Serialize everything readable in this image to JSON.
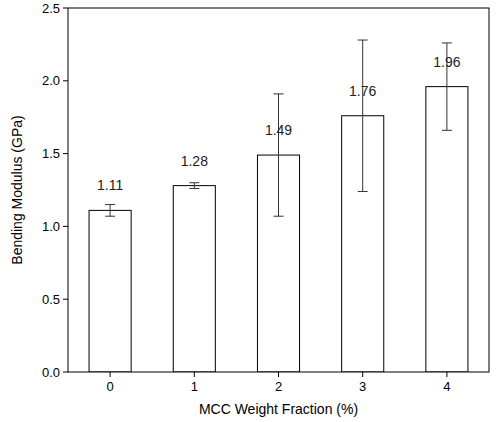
{
  "chart_data": {
    "type": "bar",
    "x_label": "MCC Weight Fraction (%)",
    "y_label": "Bending Modulus (GPa)",
    "categories": [
      "0",
      "1",
      "2",
      "3",
      "4"
    ],
    "values": [
      1.11,
      1.28,
      1.49,
      1.76,
      1.96
    ],
    "errors": [
      0.04,
      0.02,
      0.42,
      0.52,
      0.3
    ],
    "color": "#ffffff",
    "ylim": [
      0,
      2.5
    ],
    "yticks": [
      {
        "value": 0,
        "label": "0.0"
      },
      0.5,
      {
        "value": 1,
        "label": "1.0"
      },
      1.5,
      {
        "value": 2,
        "label": "2.0"
      },
      2.5
    ],
    "grid": false,
    "data_labels": true
  }
}
